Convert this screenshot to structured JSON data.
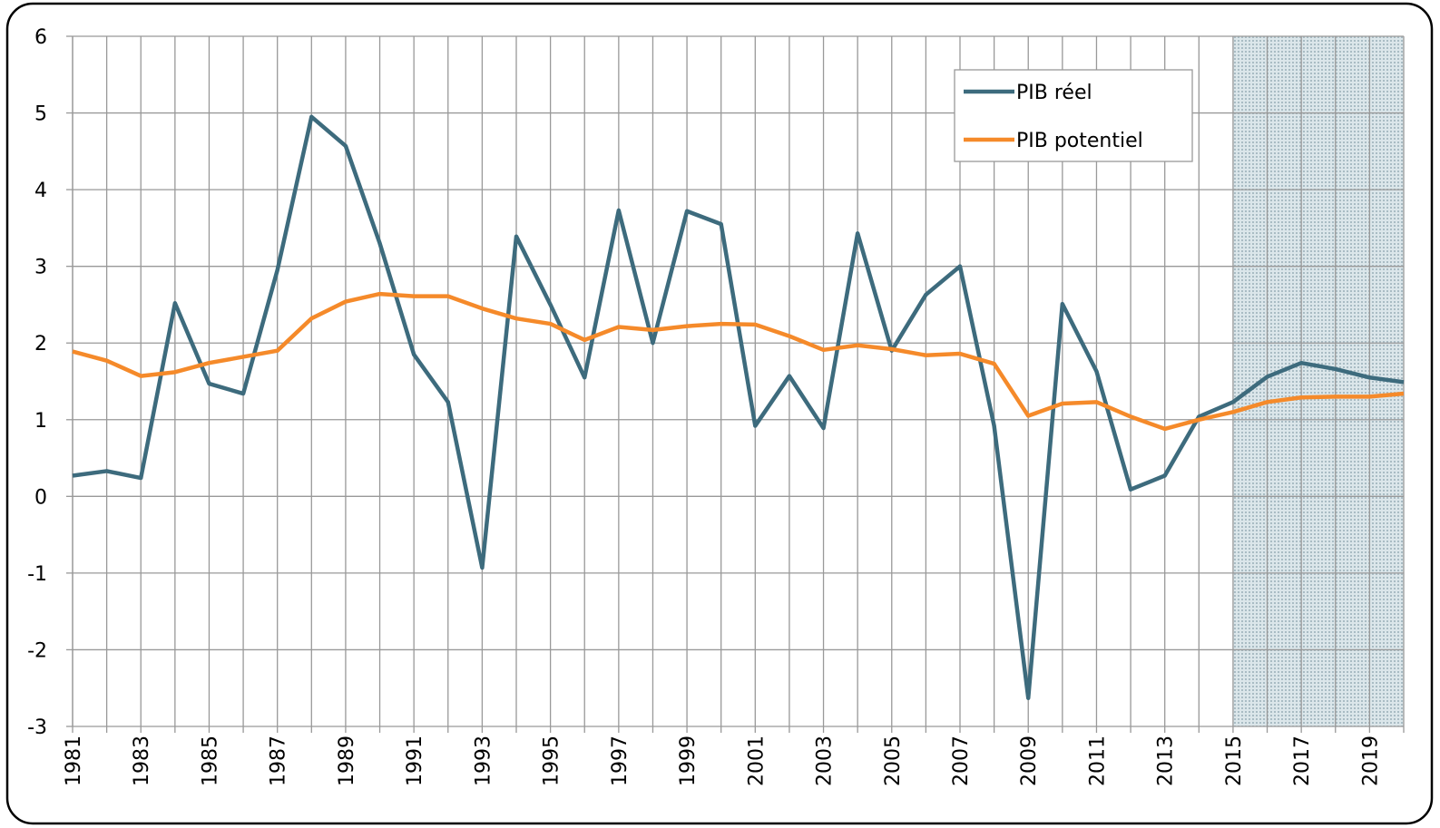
{
  "chart_data": {
    "type": "line",
    "categories": [
      "1981",
      null,
      "1983",
      null,
      "1985",
      null,
      "1987",
      null,
      "1989",
      null,
      "1991",
      null,
      "1993",
      null,
      "1995",
      null,
      "1997",
      null,
      "1999",
      null,
      "2001",
      null,
      "2003",
      null,
      "2005",
      null,
      "2007",
      null,
      "2009",
      null,
      "2011",
      null,
      "2013",
      null,
      "2015",
      null,
      "2017",
      null,
      "2019",
      null
    ],
    "series": [
      {
        "name": "PIB réel",
        "color": "#3d6b7d",
        "values": [
          0.27,
          0.33,
          0.24,
          2.52,
          1.47,
          1.34,
          2.95,
          4.95,
          4.57,
          3.3,
          1.85,
          1.23,
          -0.93,
          3.39,
          2.5,
          1.55,
          3.73,
          2.0,
          3.72,
          3.55,
          0.92,
          1.57,
          0.89,
          3.43,
          1.9,
          2.63,
          3.0,
          0.92,
          -2.63,
          2.51,
          1.63,
          0.09,
          0.27,
          1.04,
          1.23,
          1.56,
          1.74,
          1.66,
          1.55,
          1.49
        ]
      },
      {
        "name": "PIB potentiel",
        "color": "#f58a2a",
        "values": [
          1.89,
          1.77,
          1.57,
          1.62,
          1.74,
          1.82,
          1.9,
          2.32,
          2.54,
          2.64,
          2.61,
          2.61,
          2.45,
          2.32,
          2.25,
          2.04,
          2.21,
          2.17,
          2.22,
          2.25,
          2.24,
          2.09,
          1.91,
          1.97,
          1.92,
          1.84,
          1.86,
          1.73,
          1.05,
          1.21,
          1.23,
          1.04,
          0.88,
          1.0,
          1.1,
          1.23,
          1.29,
          1.3,
          1.3,
          1.34
        ]
      }
    ],
    "ylim": [
      -3,
      6
    ],
    "yticks": [
      -3,
      -2,
      -1,
      0,
      1,
      2,
      3,
      4,
      5,
      6
    ],
    "grid": true,
    "legend": "upper right"
  }
}
